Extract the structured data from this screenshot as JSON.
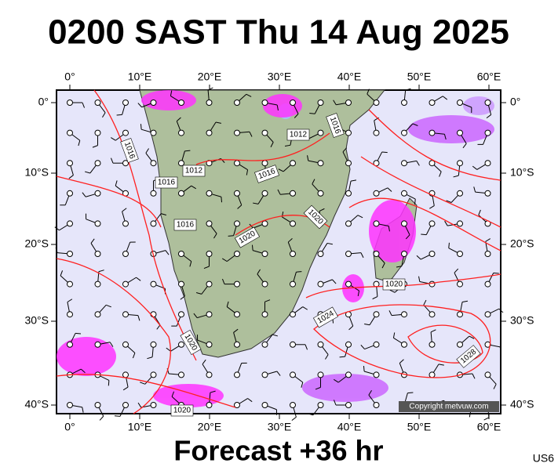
{
  "header": {
    "title": "0200 SAST Thu 14 Aug 2025"
  },
  "axes": {
    "lon_labels": [
      "0°",
      "10°E",
      "20°E",
      "30°E",
      "40°E",
      "50°E",
      "60°E"
    ],
    "lat_labels": [
      "0°",
      "10°S",
      "20°S",
      "30°S",
      "40°S"
    ]
  },
  "isobar_labels": [
    "1016",
    "1012",
    "1016",
    "1016",
    "1012",
    "1016",
    "1016",
    "1020",
    "1020",
    "1020",
    "1024",
    "1020",
    "1028",
    "1020"
  ],
  "copyright": "Copyright metvuw.com",
  "footer": "Forecast +36 hr",
  "code": "US6"
}
